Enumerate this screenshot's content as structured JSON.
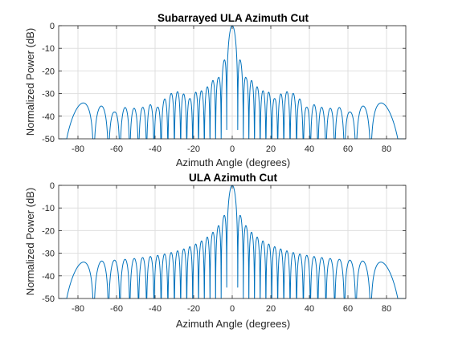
{
  "figure": {
    "background": "#ffffff"
  },
  "chart_data": [
    {
      "type": "line",
      "title": "Subarrayed ULA Azimuth Cut",
      "xlabel": "Azimuth Angle (degrees)",
      "ylabel": "Normalized Power (dB)",
      "xlim": [
        -90,
        90
      ],
      "ylim": [
        -50,
        0
      ],
      "xticks": [
        -80,
        -60,
        -40,
        -20,
        0,
        20,
        40,
        60,
        80
      ],
      "yticks": [
        0,
        -10,
        -20,
        -30,
        -40,
        -50
      ],
      "grid": true,
      "series": [
        {
          "color": "#0072bd",
          "pattern": "subarrayed"
        }
      ]
    },
    {
      "type": "line",
      "title": "ULA Azimuth Cut",
      "xlabel": "Azimuth Angle (degrees)",
      "ylabel": "Normalized Power (dB)",
      "xlim": [
        -90,
        90
      ],
      "ylim": [
        -50,
        0
      ],
      "xticks": [
        -80,
        -60,
        -40,
        -20,
        0,
        20,
        40,
        60,
        80
      ],
      "yticks": [
        0,
        -10,
        -20,
        -30,
        -40,
        -50
      ],
      "grid": true,
      "series": [
        {
          "color": "#0072bd",
          "pattern": "uniform"
        }
      ]
    }
  ]
}
